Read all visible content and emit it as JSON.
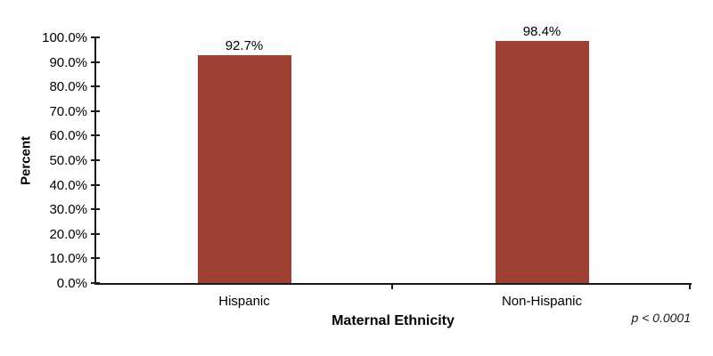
{
  "chart_data": {
    "type": "bar",
    "title": "",
    "categories": [
      "Hispanic",
      "Non-Hispanic"
    ],
    "values": [
      92.7,
      98.4
    ],
    "value_labels": [
      "92.7%",
      "98.4%"
    ],
    "xlabel": "Maternal Ethnicity",
    "ylabel": "Percent",
    "ylim": [
      0,
      100
    ],
    "ytick_step": 10,
    "ytick_labels": [
      "0.0%",
      "10.0%",
      "20.0%",
      "30.0%",
      "40.0%",
      "50.0%",
      "60.0%",
      "70.0%",
      "80.0%",
      "90.0%",
      "100.0%"
    ],
    "annotation": "p < 0.0001",
    "bar_color": "#9E4134",
    "axis_color": "#1a1a1a",
    "grid": false,
    "legend_position": "none"
  }
}
